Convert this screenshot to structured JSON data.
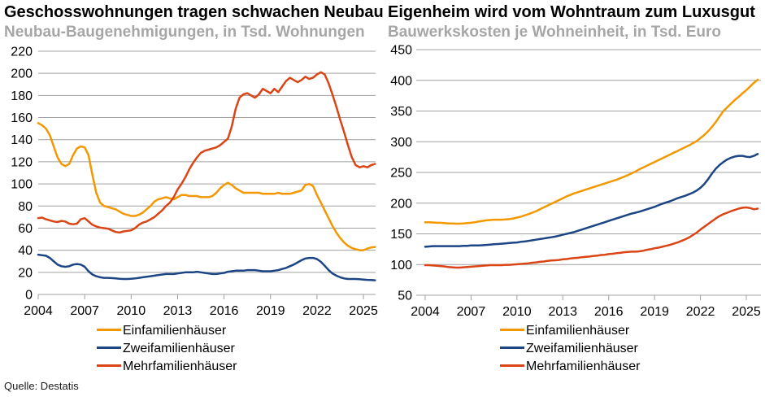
{
  "source_label": "Quelle: Destatis",
  "colors": {
    "einfamilienhaeuser": "#F39800",
    "zweifamilienhaeuser": "#1B4584",
    "mehrfamilienhaeuser": "#DB4415",
    "grid": "#A0A0A0",
    "subtitle": "#A6A6A6"
  },
  "chart_data": [
    {
      "type": "line",
      "title": "Geschosswohnungen tragen schwachen Neubau",
      "subtitle": "Neubau-Baugenehmigungen, in Tsd. Wohnungen",
      "xlabel": "",
      "ylabel": "Neubau-Baugenehmigungen, in Tsd. Wohnungen",
      "x_start": 2004,
      "x_step": 0.25,
      "x_ticks": [
        2004,
        2007,
        2010,
        2013,
        2016,
        2019,
        2022,
        2025
      ],
      "ylim": [
        0,
        220
      ],
      "y_ticks": [
        0,
        20,
        40,
        60,
        80,
        100,
        120,
        140,
        160,
        180,
        200,
        220
      ],
      "grid": "horizontal",
      "legend_position": "bottom",
      "series": [
        {
          "name": "Einfamilienhäuser",
          "color": "#F39800",
          "values": [
            155,
            153,
            150,
            144,
            134,
            124,
            118,
            116,
            118,
            126,
            132,
            134,
            133,
            126,
            108,
            92,
            83,
            80,
            79,
            78,
            77,
            75,
            73,
            72,
            71,
            71,
            72,
            74,
            77,
            80,
            84,
            86,
            87,
            88,
            87,
            86,
            88,
            90,
            90,
            89,
            89,
            89,
            88,
            88,
            88,
            89,
            92,
            96,
            99,
            101,
            99,
            96,
            94,
            92,
            92,
            92,
            92,
            92,
            91,
            91,
            91,
            91,
            92,
            91,
            91,
            91,
            92,
            93,
            94,
            99,
            100,
            98,
            90,
            83,
            76,
            69,
            62,
            56,
            51,
            47,
            44,
            42,
            41,
            40,
            40,
            41.5,
            42.5,
            43
          ]
        },
        {
          "name": "Zweifamilienhäuser",
          "color": "#1B4584",
          "values": [
            36,
            35.5,
            35,
            33,
            30,
            27,
            25.5,
            25,
            25.5,
            27,
            27.5,
            27,
            25,
            21,
            18,
            16.5,
            15.5,
            15,
            15,
            14.8,
            14.5,
            14.2,
            14,
            14,
            14.2,
            14.5,
            15,
            15.5,
            16,
            16.5,
            17,
            17.5,
            18,
            18.5,
            18.5,
            18.5,
            19,
            19.5,
            20,
            20,
            20,
            20.5,
            20,
            19.5,
            19,
            18.5,
            18.5,
            19,
            19.5,
            20.5,
            21,
            21.5,
            21.5,
            21.5,
            22,
            22,
            22,
            21.5,
            21,
            21,
            21,
            21.5,
            22,
            23,
            24,
            25.5,
            27,
            29,
            31,
            32.5,
            33,
            33,
            32,
            29.5,
            26,
            22,
            19,
            17,
            15.5,
            14.5,
            14,
            14,
            14,
            13.8,
            13.5,
            13.2,
            13,
            12.8
          ]
        },
        {
          "name": "Mehrfamilienhäuser",
          "color": "#DB4415",
          "values": [
            69,
            69.5,
            68,
            67,
            66,
            65.5,
            66.5,
            66,
            64,
            63.5,
            64,
            68,
            69,
            66,
            63,
            61.5,
            60.5,
            60,
            59.5,
            58,
            56.5,
            56,
            57,
            57.5,
            58,
            60,
            63,
            65,
            66,
            68,
            70,
            73,
            76,
            80,
            83,
            88,
            95,
            100,
            106,
            113,
            119,
            124,
            128,
            130,
            131,
            132,
            133,
            135,
            138,
            141,
            152,
            168,
            178,
            181,
            182,
            180,
            178,
            181,
            186,
            184,
            182,
            186,
            183,
            188,
            193,
            196,
            194,
            192,
            194,
            197,
            195,
            196,
            199,
            201,
            199,
            191,
            181,
            170,
            158,
            147,
            135,
            124,
            117,
            115,
            116,
            115,
            117,
            118
          ]
        }
      ]
    },
    {
      "type": "line",
      "title": "Eigenheim wird vom Wohntraum zum Luxusgut",
      "subtitle": "Bauwerkskosten je Wohneinheit, in Tsd. Euro",
      "xlabel": "",
      "ylabel": "Bauwerkskosten je Wohneinheit, in Tsd. Euro",
      "x_start": 2004,
      "x_step": 0.25,
      "x_ticks": [
        2004,
        2007,
        2010,
        2013,
        2016,
        2019,
        2022,
        2025
      ],
      "ylim": [
        50,
        450
      ],
      "y_ticks": [
        50,
        100,
        150,
        200,
        250,
        300,
        350,
        400,
        450
      ],
      "grid": "horizontal",
      "legend_position": "bottom",
      "series": [
        {
          "name": "Einfamilienhäuser",
          "color": "#F39800",
          "values": [
            169,
            169,
            168.5,
            168,
            168,
            167.5,
            167,
            167,
            166.5,
            166.5,
            167,
            167.5,
            168,
            169,
            170,
            171,
            172,
            172.5,
            173,
            173,
            173,
            173.5,
            174,
            175,
            176.5,
            178,
            180,
            182,
            184.5,
            187,
            190,
            193,
            196,
            199,
            202,
            205,
            208,
            211,
            213.5,
            216,
            218,
            220,
            222,
            224,
            226,
            228,
            230,
            232,
            234,
            236,
            238,
            240.5,
            243,
            245.5,
            248.5,
            251.5,
            255,
            258,
            261,
            264,
            267,
            270,
            273,
            276,
            279,
            282,
            285,
            288,
            291,
            294,
            297.5,
            301,
            306,
            311,
            317,
            324,
            332,
            341,
            350,
            356,
            362,
            368,
            373,
            379,
            384,
            390,
            396,
            401
          ]
        },
        {
          "name": "Zweifamilienhäuser",
          "color": "#1B4584",
          "values": [
            129,
            129.5,
            130,
            130,
            130,
            130,
            130,
            130,
            130,
            130,
            130.5,
            130.5,
            131,
            131,
            131,
            131.5,
            132,
            132.5,
            133,
            133.5,
            134,
            134.5,
            135,
            135.5,
            136,
            137,
            137.5,
            138.5,
            139.5,
            140.5,
            141.5,
            142.5,
            143.5,
            144.5,
            145.5,
            147,
            148.5,
            150,
            151.5,
            153,
            155,
            157,
            159,
            161,
            163,
            165,
            167,
            169,
            171,
            173,
            175,
            177,
            179,
            181,
            183,
            184.5,
            186,
            188,
            190,
            192,
            194,
            196.5,
            199,
            201,
            203,
            205.5,
            208,
            210,
            212,
            214.5,
            217,
            220.5,
            225,
            231,
            239,
            248,
            256,
            262,
            267,
            271,
            274,
            276,
            277,
            277,
            275.5,
            275,
            277,
            280
          ]
        },
        {
          "name": "Mehrfamilienhäuser",
          "color": "#DB4415",
          "values": [
            99,
            99,
            98.5,
            98,
            97.5,
            97,
            96,
            95.5,
            95,
            95,
            95.5,
            96,
            96.5,
            97,
            97.5,
            98,
            98.5,
            99,
            99,
            99,
            99,
            99.5,
            99.5,
            100,
            100.5,
            101,
            101.5,
            102,
            103,
            103.5,
            104.5,
            105,
            106,
            106.5,
            107,
            107.5,
            108.5,
            109,
            110,
            110.5,
            111,
            112,
            112.5,
            113,
            114,
            114.5,
            115.5,
            116,
            117,
            117.5,
            118.5,
            119,
            120,
            120.5,
            121,
            121,
            121.5,
            122.5,
            124,
            125,
            126.5,
            127.5,
            129,
            130.5,
            132,
            134,
            136,
            138.5,
            141,
            144,
            148,
            152,
            157,
            161.5,
            166,
            170.5,
            175,
            179,
            182,
            184.5,
            187,
            189,
            191,
            192.5,
            193,
            192,
            190,
            191
          ]
        }
      ]
    }
  ]
}
